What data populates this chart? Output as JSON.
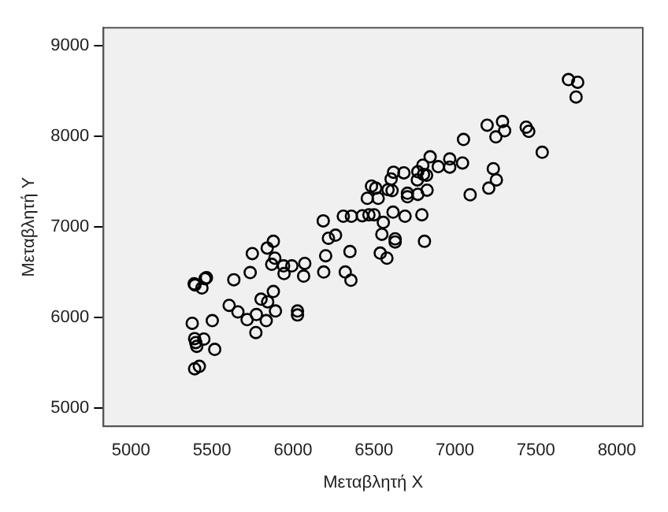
{
  "chart_data": {
    "type": "scatter",
    "xlabel": "Μεταβλητή X",
    "ylabel": "Μεταβλητή Y",
    "xlim": [
      4830,
      8160
    ],
    "ylim": [
      4800,
      9200
    ],
    "xticks": [
      5000,
      5500,
      6000,
      6500,
      7000,
      7500,
      8000
    ],
    "yticks": [
      5000,
      6000,
      7000,
      8000,
      9000
    ],
    "grid": false,
    "legend": false,
    "marker": "circle",
    "series": [
      {
        "color": "#000000",
        "x": [
          5390,
          5395,
          5438,
          5466,
          5457,
          5635,
          5749,
          5736,
          5841,
          5888,
          5869,
          5942,
          5945,
          5993,
          6073,
          6066,
          6202,
          6190,
          6323,
          6358,
          6352,
          5606,
          5660,
          5717,
          5774,
          5803,
          5844,
          5879,
          5892,
          5835,
          5771,
          6028,
          6028,
          5378,
          5502,
          5393,
          5406,
          5450,
          5400,
          5517,
          5393,
          5422,
          5879,
          6187,
          6311,
          6361,
          6219,
          6263,
          7701,
          7758,
          7748,
          7199,
          7294,
          7307,
          7253,
          7440,
          7456,
          7539,
          7053,
          6847,
          6897,
          6968,
          6968,
          7047,
          6802,
          6806,
          7237,
          7256,
          7209,
          7094,
          6771,
          6768,
          6825,
          6828,
          6771,
          6707,
          6707,
          6685,
          6621,
          6606,
          6587,
          6612,
          6485,
          6511,
          6459,
          6526,
          6428,
          6469,
          6501,
          6618,
          6692,
          6796,
          6558,
          6549,
          6631,
          6631,
          6812,
          6539,
          6580
        ],
        "values": [
          6373,
          6360,
          6327,
          6441,
          6429,
          6418,
          6707,
          6497,
          6768,
          6656,
          6588,
          6571,
          6486,
          6571,
          6598,
          6458,
          6683,
          6503,
          6503,
          6412,
          6729,
          6135,
          6063,
          5978,
          6034,
          6203,
          6174,
          6288,
          6073,
          5966,
          5835,
          6073,
          6029,
          5937,
          5966,
          5768,
          5683,
          5763,
          5724,
          5649,
          5435,
          5462,
          6842,
          7068,
          7119,
          7119,
          6876,
          6910,
          8627,
          8598,
          8435,
          8124,
          8164,
          8063,
          7995,
          8102,
          8056,
          7825,
          7966,
          7775,
          7666,
          7751,
          7661,
          7707,
          7683,
          7581,
          7644,
          7520,
          7429,
          7356,
          7610,
          7520,
          7571,
          7407,
          7361,
          7373,
          7334,
          7598,
          7605,
          7530,
          7412,
          7402,
          7452,
          7429,
          7317,
          7317,
          7124,
          7135,
          7135,
          7164,
          7119,
          7135,
          7051,
          6920,
          6869,
          6835,
          6842,
          6712,
          6656
        ]
      }
    ]
  }
}
